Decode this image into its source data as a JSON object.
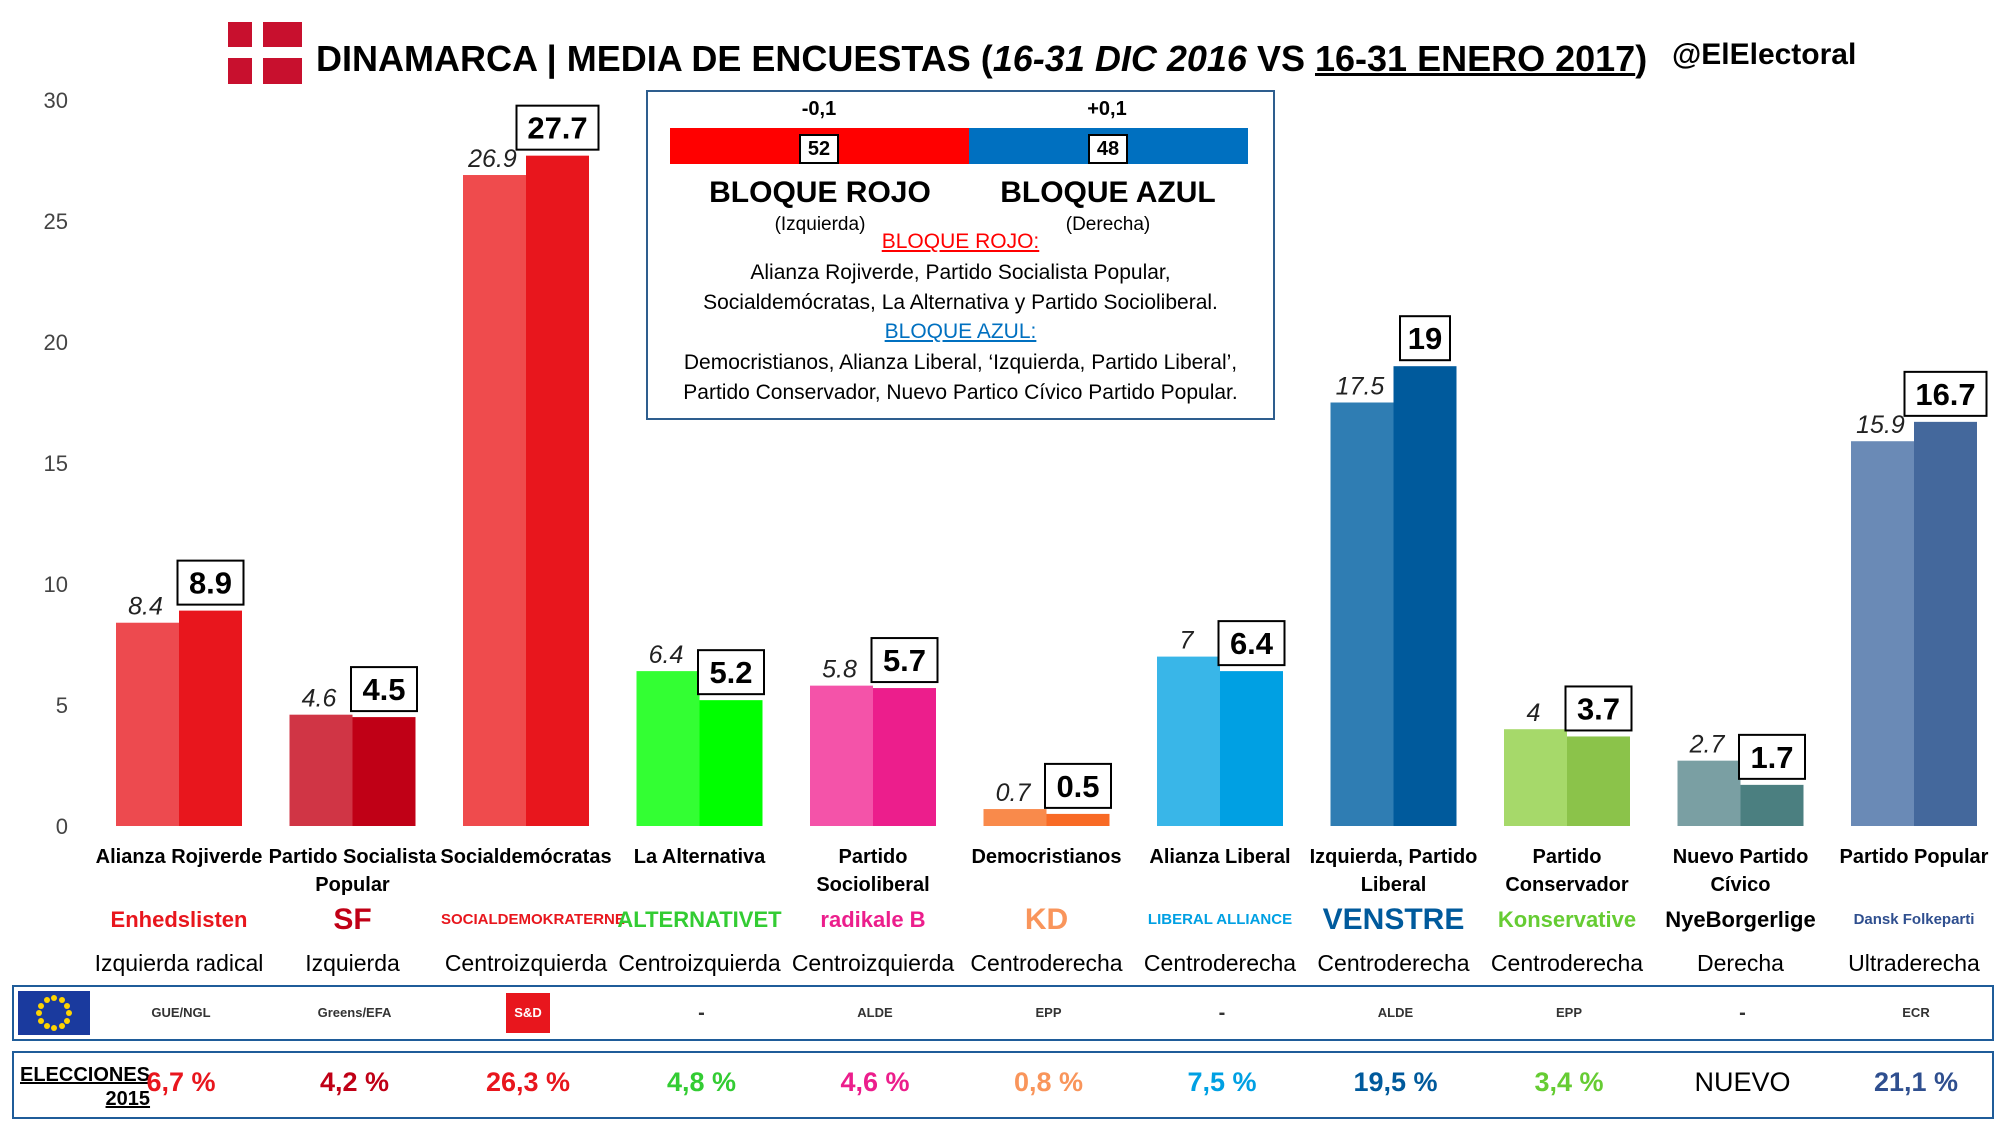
{
  "header": {
    "title_main": "DINAMARCA | MEDIA DE ENCUESTAS",
    "title_dates_1": "16-31 DIC 2016",
    "title_vs": "VS",
    "title_dates_2": "16-31 ENERO 2017",
    "handle": "@ElElectoral"
  },
  "bloques": {
    "rojo": {
      "diff": "-0,1",
      "seats": "52",
      "name": "BLOQUE ROJO",
      "side": "(Izquierda)",
      "color": "#ff0000"
    },
    "azul": {
      "diff": "+0,1",
      "seats": "48",
      "name": "BLOQUE AZUL",
      "side": "(Derecha)",
      "color": "#0070c0"
    },
    "rojo_title": "BLOQUE ROJO:",
    "rojo_text_1": "Alianza Rojiverde, Partido Socialista Popular,",
    "rojo_text_2": "Socialdemócratas, La Alternativa y Partido Socioliberal.",
    "azul_title": "BLOQUE AZUL:",
    "azul_text_1": "Democristianos, Alianza Liberal, ‘Izquierda, Partido Liberal’,",
    "azul_text_2": "Partido Conservador, Nuevo Partico Cívico Partido Popular."
  },
  "chart_data": {
    "type": "bar",
    "title": "",
    "xlabel": "",
    "ylabel": "",
    "ylim": [
      0,
      30
    ],
    "yticks": [
      0,
      5,
      10,
      15,
      20,
      25,
      30
    ],
    "grid": false,
    "categories": [
      "Alianza Rojiverde",
      "Partido Socialista Popular",
      "Socialdemócratas",
      "La Alternativa",
      "Partido Socioliberal",
      "Democristianos",
      "Alianza Liberal",
      "Izquierda, Partido Liberal",
      "Partido Conservador",
      "Nuevo Partido Cívico",
      "Partido Popular"
    ],
    "series": [
      {
        "name": "16-31 DIC 2016",
        "values": [
          8.4,
          4.6,
          26.9,
          6.4,
          5.8,
          0.7,
          7,
          17.5,
          4,
          2.7,
          15.9
        ],
        "labels": [
          "8.4",
          "4.6",
          "26.9",
          "6.4",
          "5.8",
          "0.7",
          "7",
          "17.5",
          "4",
          "2.7",
          "15.9"
        ]
      },
      {
        "name": "16-31 ENERO 2017",
        "values": [
          8.9,
          4.5,
          27.7,
          5.2,
          5.7,
          0.5,
          6.4,
          19,
          3.7,
          1.7,
          16.7
        ],
        "labels": [
          "8.9",
          "4.5",
          "27.7",
          "5.2",
          "5.7",
          "0.5",
          "6.4",
          "19",
          "3.7",
          "1.7",
          "16.7"
        ]
      }
    ],
    "colors_dec": [
      "#ed4a4f",
      "#d03545",
      "#ef4b4d",
      "#33ff33",
      "#f453a9",
      "#f98a4b",
      "#39b6e8",
      "#2f7db3",
      "#a6d96a",
      "#7a9fa3",
      "#6a8ab6"
    ],
    "colors_jan": [
      "#e8161d",
      "#c00016",
      "#e8161d",
      "#00ff00",
      "#ec1e8c",
      "#f86a25",
      "#00a0e3",
      "#005a9c",
      "#8bc34a",
      "#4b7f80",
      "#44689c"
    ]
  },
  "parties": [
    {
      "name_1": "Alianza Rojiverde",
      "name_2": "",
      "logo": "Enhedslisten",
      "ideology": "Izquierda radical",
      "eu_group": "GUE/NGL",
      "election_2015": "6,7 %",
      "color": "#e8161d"
    },
    {
      "name_1": "Partido Socialista",
      "name_2": "Popular",
      "logo": "SF",
      "ideology": "Izquierda",
      "eu_group": "Greens/EFA",
      "election_2015": "4,2 %",
      "color": "#c00016"
    },
    {
      "name_1": "Socialdemócratas",
      "name_2": "",
      "logo": "SOCIALDEMOKRATERNE",
      "ideology": "Centroizquierda",
      "eu_group": "S&D",
      "election_2015": "26,3 %",
      "color": "#e8161d"
    },
    {
      "name_1": "La Alternativa",
      "name_2": "",
      "logo": "ALTERNATIVET",
      "ideology": "Centroizquierda",
      "eu_group": "-",
      "election_2015": "4,8 %",
      "color": "#33cc33"
    },
    {
      "name_1": "Partido",
      "name_2": "Socioliberal",
      "logo": "radikale B",
      "ideology": "Centroizquierda",
      "eu_group": "ALDE",
      "election_2015": "4,6 %",
      "color": "#ec1e8c"
    },
    {
      "name_1": "Democristianos",
      "name_2": "",
      "logo": "KD",
      "ideology": "Centroderecha",
      "eu_group": "EPP",
      "election_2015": "0,8 %",
      "color": "#f9955b"
    },
    {
      "name_1": "Alianza Liberal",
      "name_2": "",
      "logo": "LIBERAL ALLIANCE",
      "ideology": "Centroderecha",
      "eu_group": "-",
      "election_2015": "7,5 %",
      "color": "#00a0e3"
    },
    {
      "name_1": "Izquierda, Partido",
      "name_2": "Liberal",
      "logo": "VENSTRE",
      "ideology": "Centroderecha",
      "eu_group": "ALDE",
      "election_2015": "19,5 %",
      "color": "#005a9c"
    },
    {
      "name_1": "Partido",
      "name_2": "Conservador",
      "logo": "Konservative",
      "ideology": "Centroderecha",
      "eu_group": "EPP",
      "election_2015": "3,4 %",
      "color": "#66cc33"
    },
    {
      "name_1": "Nuevo Partido",
      "name_2": "Cívico",
      "logo": "NyeBorgerlige",
      "ideology": "Derecha",
      "eu_group": "-",
      "election_2015": "NUEVO",
      "color": "#000000"
    },
    {
      "name_1": "Partido Popular",
      "name_2": "",
      "logo": "Dansk Folkeparti",
      "ideology": "Ultraderecha",
      "eu_group": "ECR",
      "election_2015": "21,1 %",
      "color": "#2f4f8f"
    }
  ],
  "elections_label_1": "ELECCIONES",
  "elections_label_2": "2015"
}
